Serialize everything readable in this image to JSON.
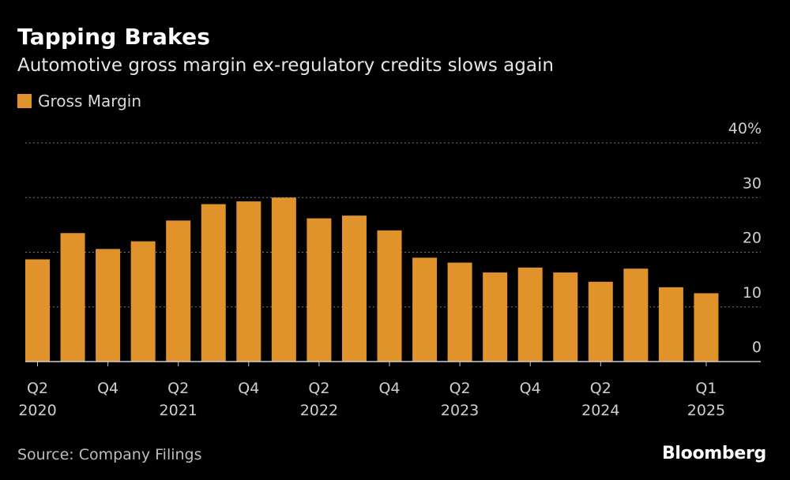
{
  "colors": {
    "bar": "#e0922b",
    "grid": "#777777",
    "axis": "#cccccc"
  },
  "chart_data": {
    "type": "bar",
    "title": "Tapping Brakes",
    "subtitle": "Automotive gross margin ex-regulatory credits slows again",
    "legend": "Gross Margin",
    "source": "Source: Company Filings",
    "brand": "Bloomberg",
    "categories": [
      "Q2 2020",
      "Q3 2020",
      "Q4 2020",
      "Q1 2021",
      "Q2 2021",
      "Q3 2021",
      "Q4 2021",
      "Q1 2022",
      "Q2 2022",
      "Q3 2022",
      "Q4 2022",
      "Q1 2023",
      "Q2 2023",
      "Q3 2023",
      "Q4 2023",
      "Q1 2024",
      "Q2 2024",
      "Q3 2024",
      "Q4 2024",
      "Q1 2025"
    ],
    "values": [
      18.7,
      23.5,
      20.6,
      22.0,
      25.8,
      28.8,
      29.3,
      30.0,
      26.2,
      26.7,
      24.0,
      19.0,
      18.1,
      16.3,
      17.2,
      16.3,
      14.6,
      17.0,
      13.6,
      12.5
    ],
    "ylim": [
      0,
      40
    ],
    "yticks": [
      "40%",
      "30",
      "20",
      "10",
      "0"
    ],
    "ytick_values": [
      40,
      30,
      20,
      10,
      0
    ],
    "xticks": [
      {
        "index": 0,
        "q": "Q2",
        "year": "2020"
      },
      {
        "index": 2,
        "q": "Q4",
        "year": ""
      },
      {
        "index": 4,
        "q": "Q2",
        "year": "2021"
      },
      {
        "index": 6,
        "q": "Q4",
        "year": ""
      },
      {
        "index": 8,
        "q": "Q2",
        "year": "2022"
      },
      {
        "index": 10,
        "q": "Q4",
        "year": ""
      },
      {
        "index": 12,
        "q": "Q2",
        "year": "2023"
      },
      {
        "index": 14,
        "q": "Q4",
        "year": ""
      },
      {
        "index": 16,
        "q": "Q2",
        "year": "2024"
      },
      {
        "index": 19,
        "q": "Q1",
        "year": "2025"
      }
    ]
  }
}
